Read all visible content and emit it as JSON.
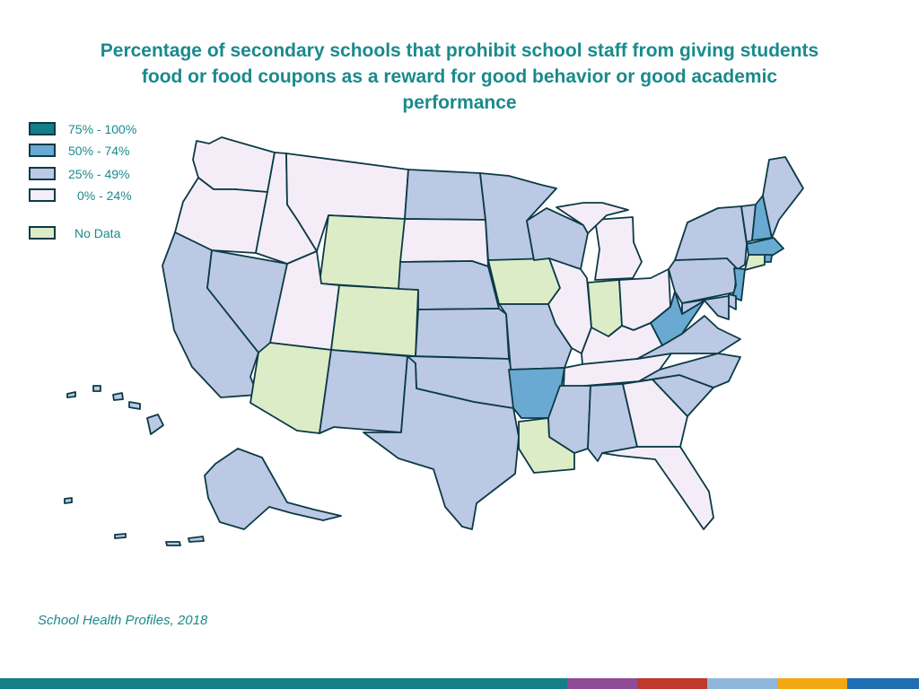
{
  "title_lines": [
    "Percentage of secondary schools that prohibit school staff from giving students",
    "food or food coupons as a reward for good behavior or good academic",
    "performance"
  ],
  "legend": {
    "items": [
      {
        "label": "75% - 100%",
        "color": "#137f86"
      },
      {
        "label": "50% - 74%",
        "color": "#6aa9d2"
      },
      {
        "label": "25% - 49%",
        "color": "#bcc9e4"
      },
      {
        "label": "0% - 24%",
        "color": "#f4edf7"
      },
      {
        "label": "No Data",
        "color": "#dcecc7"
      }
    ]
  },
  "map": {
    "stroke_color": "#0b3a46",
    "states": {
      "WA": "0% - 24%",
      "OR": "0% - 24%",
      "CA": "25% - 49%",
      "NV": "25% - 49%",
      "ID": "0% - 24%",
      "MT": "0% - 24%",
      "WY": "No Data",
      "UT": "0% - 24%",
      "CO": "No Data",
      "AZ": "No Data",
      "NM": "25% - 49%",
      "ND": "25% - 49%",
      "SD": "0% - 24%",
      "NE": "25% - 49%",
      "KS": "25% - 49%",
      "OK": "25% - 49%",
      "TX": "25% - 49%",
      "MN": "25% - 49%",
      "IA": "No Data",
      "MO": "25% - 49%",
      "AR": "50% - 74%",
      "LA": "No Data",
      "WI": "25% - 49%",
      "IL": "0% - 24%",
      "MI": "0% - 24%",
      "IN": "No Data",
      "OH": "0% - 24%",
      "KY": "0% - 24%",
      "TN": "0% - 24%",
      "MS": "25% - 49%",
      "AL": "25% - 49%",
      "GA": "0% - 24%",
      "FL": "0% - 24%",
      "SC": "25% - 49%",
      "NC": "25% - 49%",
      "VA": "25% - 49%",
      "WV": "50% - 74%",
      "PA": "25% - 49%",
      "NY": "25% - 49%",
      "VT": "25% - 49%",
      "NH": "50% - 74%",
      "ME": "25% - 49%",
      "MA": "50% - 74%",
      "RI": "50% - 74%",
      "CT": "No Data",
      "NJ": "50% - 74%",
      "DE": "25% - 49%",
      "MD": "25% - 49%",
      "AK": "25% - 49%",
      "HI": "25% - 49%"
    }
  },
  "source": "School Health Profiles, 2018",
  "footer_colors": [
    "#137f86",
    "#8e4c97",
    "#c0392b",
    "#8fb7d9",
    "#f3a712",
    "#1f6fb2"
  ]
}
